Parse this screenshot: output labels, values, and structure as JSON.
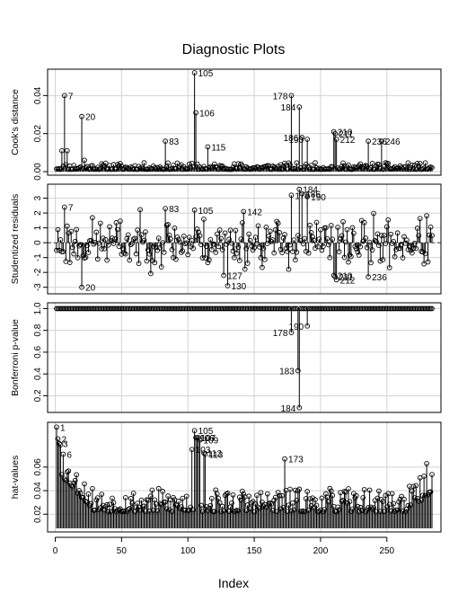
{
  "chart_data": {
    "type": "scatter",
    "title": "Diagnostic Plots",
    "xlabel": "Index",
    "xlim": [
      1,
      284
    ],
    "xticks": [
      0,
      50,
      100,
      150,
      200,
      250
    ],
    "grid": true,
    "panels": [
      {
        "id": "cooks",
        "ylabel": "Cook's distance",
        "ylim": [
          0,
          0.052
        ],
        "yticks": [
          0.0,
          0.02,
          0.04
        ],
        "ytick_labels": [
          "0.00",
          "0.02",
          "0.04"
        ],
        "base": 0,
        "noise": {
          "seed": 11,
          "baseline": 0.0012,
          "scale": 0.0035
        },
        "points": [
          {
            "x": 5,
            "y": 0.011
          },
          {
            "x": 7,
            "y": 0.04,
            "label": "7"
          },
          {
            "x": 9,
            "y": 0.011
          },
          {
            "x": 20,
            "y": 0.029,
            "label": "20"
          },
          {
            "x": 22,
            "y": 0.006
          },
          {
            "x": 83,
            "y": 0.016,
            "label": "83"
          },
          {
            "x": 105,
            "y": 0.052,
            "label": "105"
          },
          {
            "x": 106,
            "y": 0.031,
            "label": "106"
          },
          {
            "x": 115,
            "y": 0.013,
            "label": "115"
          },
          {
            "x": 178,
            "y": 0.04,
            "label": "178"
          },
          {
            "x": 184,
            "y": 0.034,
            "label": "184"
          },
          {
            "x": 186,
            "y": 0.018,
            "label": "186"
          },
          {
            "x": 190,
            "y": 0.017,
            "label": "190"
          },
          {
            "x": 210,
            "y": 0.021,
            "label": "210"
          },
          {
            "x": 211,
            "y": 0.02,
            "label": "211"
          },
          {
            "x": 212,
            "y": 0.017,
            "label": "212"
          },
          {
            "x": 236,
            "y": 0.016,
            "label": "236"
          },
          {
            "x": 246,
            "y": 0.016,
            "label": "246"
          }
        ]
      },
      {
        "id": "studres",
        "ylabel": "Studentized residuals",
        "ylim": [
          -3.2,
          3.7
        ],
        "yticks": [
          -3,
          -2,
          -1,
          0,
          1,
          2,
          3
        ],
        "ytick_labels": [
          "-3",
          "-2",
          "-1",
          "0",
          "1",
          "2",
          "3"
        ],
        "base": 0,
        "refline": 0,
        "noise": {
          "seed": 23,
          "baseline": 0,
          "scale": 1.6
        },
        "points": [
          {
            "x": 7,
            "y": 2.4,
            "label": "7"
          },
          {
            "x": 20,
            "y": -3.0,
            "label": "20"
          },
          {
            "x": 83,
            "y": 2.3,
            "label": "83"
          },
          {
            "x": 105,
            "y": 2.2,
            "label": "105"
          },
          {
            "x": 127,
            "y": -2.2,
            "label": "127"
          },
          {
            "x": 130,
            "y": -2.9,
            "label": "130"
          },
          {
            "x": 142,
            "y": 2.1,
            "label": "142"
          },
          {
            "x": 178,
            "y": 3.2,
            "label": "178"
          },
          {
            "x": 184,
            "y": 3.6,
            "label": "184"
          },
          {
            "x": 186,
            "y": 3.3,
            "label": "186"
          },
          {
            "x": 190,
            "y": 3.1,
            "label": "190"
          },
          {
            "x": 210,
            "y": -2.2,
            "label": "210"
          },
          {
            "x": 211,
            "y": -2.3,
            "label": "211"
          },
          {
            "x": 212,
            "y": -2.5,
            "label": "212"
          },
          {
            "x": 236,
            "y": -2.3,
            "label": "236"
          }
        ]
      },
      {
        "id": "bonf",
        "ylabel": "Bonferroni p-value",
        "ylim": [
          0.08,
          1.02
        ],
        "yticks": [
          0.2,
          0.4,
          0.6,
          0.8,
          1.0
        ],
        "ytick_labels": [
          "0.2",
          "0.4",
          "0.6",
          "0.8",
          "1.0"
        ],
        "base": 1.0,
        "noise": {
          "seed": 37,
          "baseline": 1.0,
          "scale": 0
        },
        "points": [
          {
            "x": 178,
            "y": 0.78,
            "label": "178"
          },
          {
            "x": 184,
            "y": 0.09,
            "label": "184"
          },
          {
            "x": 183,
            "y": 0.43,
            "label": "183"
          },
          {
            "x": 190,
            "y": 0.84,
            "label": "190"
          }
        ]
      },
      {
        "id": "hat",
        "ylabel": "hat-values",
        "ylim": [
          0.008,
          0.095
        ],
        "yticks": [
          0.02,
          0.04,
          0.06
        ],
        "ytick_labels": [
          "0.02",
          "0.04",
          "0.06"
        ],
        "base": 0.008,
        "noise": {
          "seed": 53,
          "baseline": 0.022,
          "scale": 0.02
        },
        "points": [
          {
            "x": 1,
            "y": 0.094,
            "label": "1"
          },
          {
            "x": 2,
            "y": 0.084,
            "label": "2"
          },
          {
            "x": 3,
            "y": 0.08,
            "label": "3"
          },
          {
            "x": 4,
            "y": 0.079
          },
          {
            "x": 6,
            "y": 0.071,
            "label": "6"
          },
          {
            "x": 105,
            "y": 0.091,
            "label": "105"
          },
          {
            "x": 106,
            "y": 0.085,
            "label": "106"
          },
          {
            "x": 107,
            "y": 0.085,
            "label": "107"
          },
          {
            "x": 108,
            "y": 0.085
          },
          {
            "x": 109,
            "y": 0.083,
            "label": "109"
          },
          {
            "x": 103,
            "y": 0.075,
            "label": "103"
          },
          {
            "x": 112,
            "y": 0.072,
            "label": "112"
          },
          {
            "x": 113,
            "y": 0.071,
            "label": "113"
          },
          {
            "x": 173,
            "y": 0.067,
            "label": "173"
          },
          {
            "x": 280,
            "y": 0.063
          }
        ]
      }
    ]
  }
}
